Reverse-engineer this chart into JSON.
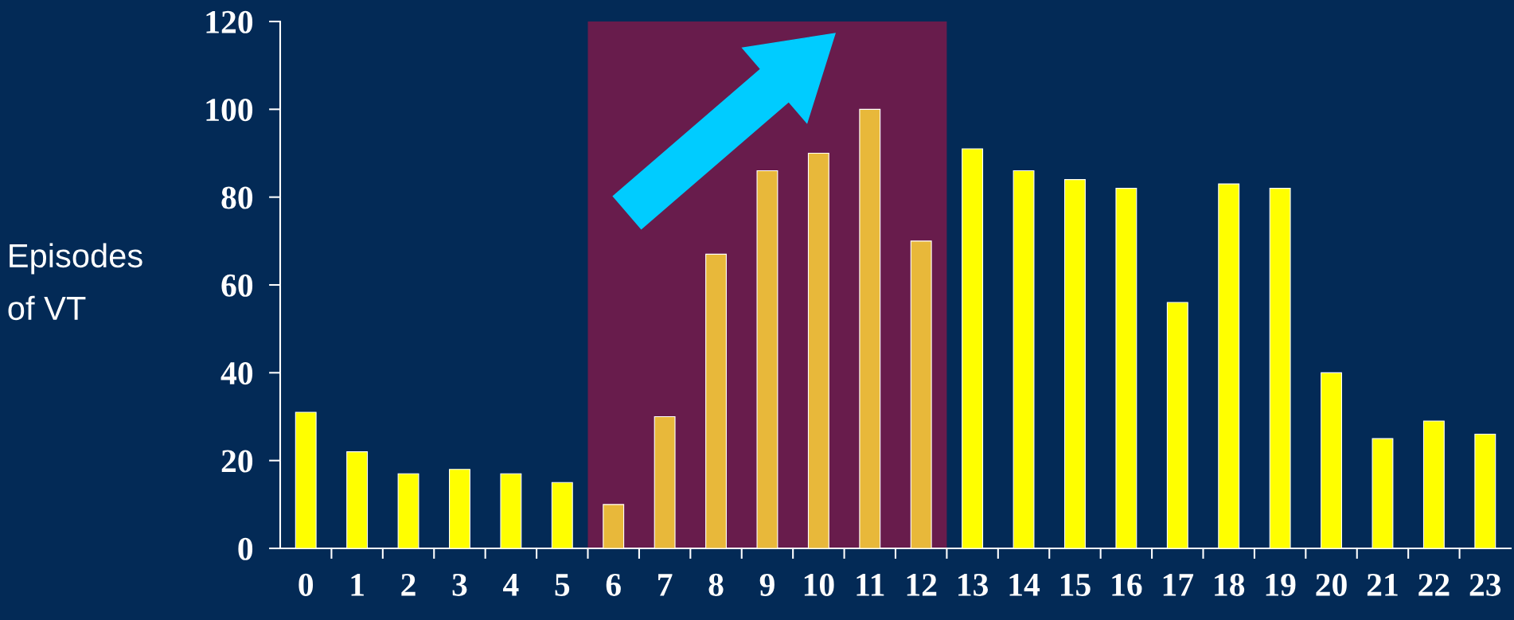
{
  "chart_data": {
    "type": "bar",
    "ylabel": "Episodes\nof VT",
    "categories": [
      "0",
      "1",
      "2",
      "3",
      "4",
      "5",
      "6",
      "7",
      "8",
      "9",
      "10",
      "11",
      "12",
      "13",
      "14",
      "15",
      "16",
      "17",
      "18",
      "19",
      "20",
      "21",
      "22",
      "23"
    ],
    "values": [
      31,
      22,
      17,
      18,
      17,
      15,
      10,
      30,
      67,
      86,
      90,
      100,
      70,
      91,
      86,
      84,
      82,
      56,
      83,
      82,
      40,
      25,
      29,
      26
    ],
    "colors": [
      "#ffff00",
      "#ffff00",
      "#ffff00",
      "#ffff00",
      "#ffff00",
      "#ffff00",
      "#e8b83a",
      "#e8b83a",
      "#e8b83a",
      "#e8b83a",
      "#e8b83a",
      "#e8b83a",
      "#e8b83a",
      "#ffff00",
      "#ffff00",
      "#ffff00",
      "#ffff00",
      "#ffff00",
      "#ffff00",
      "#ffff00",
      "#ffff00",
      "#ffff00",
      "#ffff00",
      "#ffff00"
    ],
    "ylim": [
      0,
      120
    ],
    "yticks": [
      0,
      20,
      40,
      60,
      80,
      100,
      120
    ],
    "bands": [
      {
        "axis": "x",
        "from": "6",
        "to": "12",
        "color": "#7a1a4a"
      }
    ],
    "grid": false
  }
}
